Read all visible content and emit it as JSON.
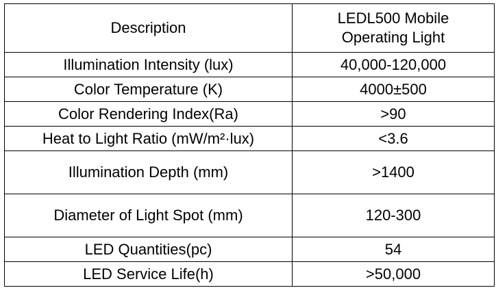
{
  "table": {
    "header": {
      "col1": "Description",
      "col2_line1": "LEDL500 Mobile",
      "col2_line2": "Operating Light"
    },
    "rows": [
      {
        "label": "Illumination Intensity (lux)",
        "value": "40,000-120,000"
      },
      {
        "label": "Color Temperature (K)",
        "value": "4000±500"
      },
      {
        "label": "Color Rendering Index(Ra)",
        "value": ">90"
      },
      {
        "label": "Heat to Light Ratio (mW/m²·lux)",
        "value": "<3.6"
      },
      {
        "label": "Illumination Depth (mm)",
        "value": ">1400"
      },
      {
        "label": "Diameter of Light Spot (mm)",
        "value": "120-300"
      },
      {
        "label": "LED Quantities(pc)",
        "value": "54"
      },
      {
        "label": "LED Service Life(h)",
        "value": ">50,000"
      }
    ]
  }
}
